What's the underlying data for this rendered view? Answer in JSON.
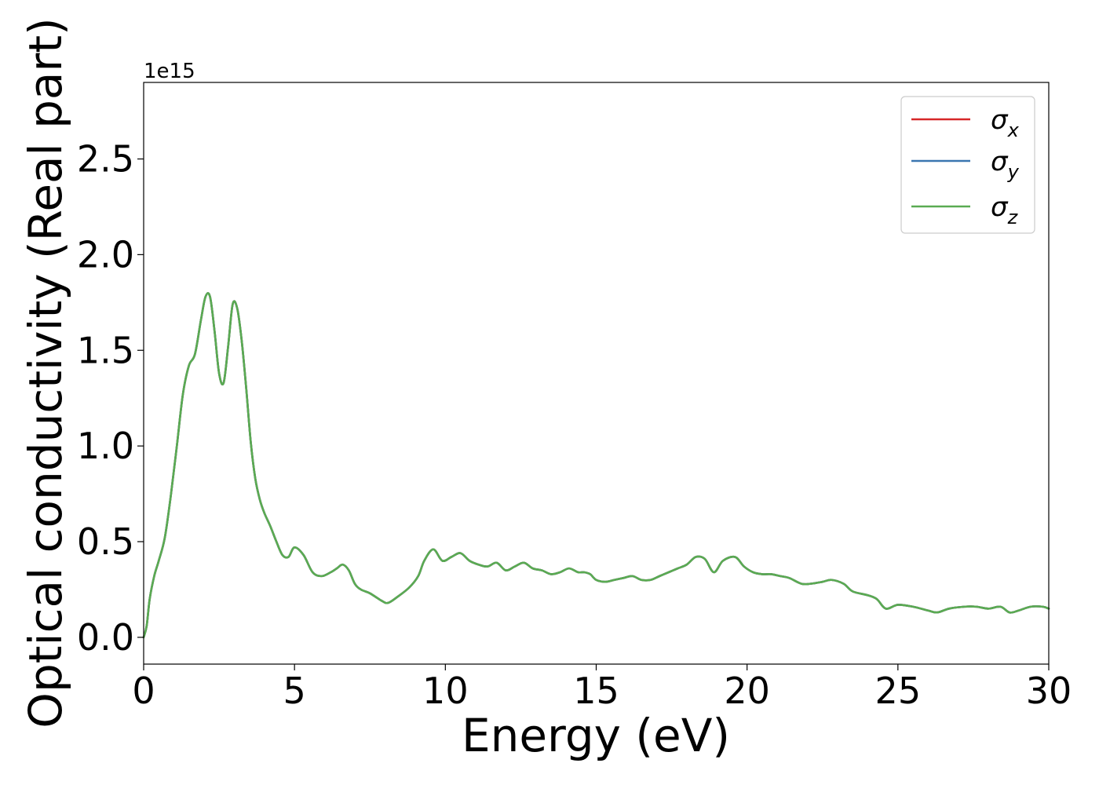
{
  "chart_data": {
    "type": "line",
    "xlabel": "Energy (eV)",
    "ylabel": "Optical conductivity (Real part)",
    "y_offset_label": "1e15",
    "xlim": [
      0,
      30
    ],
    "ylim": [
      -0.14,
      2.9
    ],
    "y_scale_factor": 1000000000000000.0,
    "x_ticks": [
      0,
      5,
      10,
      15,
      20,
      25,
      30
    ],
    "x_tick_labels": [
      "0",
      "5",
      "10",
      "15",
      "20",
      "25",
      "30"
    ],
    "y_ticks": [
      0.0,
      0.5,
      1.0,
      1.5,
      2.0,
      2.5
    ],
    "y_tick_labels": [
      "0.0",
      "0.5",
      "1.0",
      "1.5",
      "2.0",
      "2.5"
    ],
    "grid": false,
    "legend_position": "top-right",
    "colors": {
      "sigma_x": "#d62728",
      "sigma_y": "#3a76b0",
      "sigma_z": "#5aab52"
    },
    "series": [
      {
        "name": "σx",
        "legend_base": "σ",
        "legend_sub": "x",
        "color": "#d62728",
        "ref": "main"
      },
      {
        "name": "σy",
        "legend_base": "σ",
        "legend_sub": "y",
        "color": "#3a76b0",
        "ref": "main"
      },
      {
        "name": "σz",
        "legend_base": "σ",
        "legend_sub": "z",
        "color": "#5aab52",
        "ref": "main"
      }
    ],
    "x": [
      0,
      0.1,
      0.2,
      0.35,
      0.5,
      0.7,
      0.9,
      1.1,
      1.3,
      1.5,
      1.7,
      1.9,
      2.05,
      2.2,
      2.35,
      2.5,
      2.65,
      2.8,
      2.95,
      3.1,
      3.25,
      3.4,
      3.55,
      3.7,
      3.85,
      4.0,
      4.2,
      4.4,
      4.6,
      4.8,
      5.0,
      5.3,
      5.6,
      5.9,
      6.2,
      6.4,
      6.6,
      6.8,
      7.0,
      7.2,
      7.5,
      7.9,
      8.1,
      8.4,
      8.8,
      9.1,
      9.3,
      9.6,
      9.9,
      10.2,
      10.5,
      10.8,
      11.1,
      11.4,
      11.7,
      12.0,
      12.3,
      12.6,
      12.9,
      13.2,
      13.5,
      13.8,
      14.1,
      14.4,
      14.6,
      14.8,
      15.0,
      15.3,
      15.6,
      15.9,
      16.2,
      16.5,
      16.8,
      17.1,
      17.4,
      17.7,
      18.0,
      18.3,
      18.6,
      18.9,
      19.2,
      19.6,
      19.9,
      20.2,
      20.5,
      20.8,
      21.1,
      21.4,
      21.8,
      22.1,
      22.5,
      22.8,
      23.2,
      23.5,
      24.0,
      24.3,
      24.6,
      25.0,
      25.5,
      26.0,
      26.3,
      26.7,
      27.2,
      27.6,
      28.0,
      28.4,
      28.7,
      29.0,
      29.4,
      29.8,
      30.0
    ],
    "y": [
      0.0,
      0.06,
      0.2,
      0.32,
      0.4,
      0.52,
      0.74,
      1.0,
      1.27,
      1.42,
      1.48,
      1.66,
      1.78,
      1.78,
      1.6,
      1.38,
      1.33,
      1.52,
      1.74,
      1.72,
      1.55,
      1.3,
      1.02,
      0.83,
      0.72,
      0.65,
      0.58,
      0.5,
      0.43,
      0.42,
      0.47,
      0.43,
      0.34,
      0.32,
      0.34,
      0.36,
      0.38,
      0.35,
      0.28,
      0.25,
      0.23,
      0.19,
      0.18,
      0.21,
      0.26,
      0.32,
      0.4,
      0.46,
      0.4,
      0.42,
      0.44,
      0.4,
      0.38,
      0.37,
      0.39,
      0.35,
      0.37,
      0.39,
      0.36,
      0.35,
      0.33,
      0.34,
      0.36,
      0.34,
      0.34,
      0.33,
      0.3,
      0.29,
      0.3,
      0.31,
      0.32,
      0.3,
      0.3,
      0.32,
      0.34,
      0.36,
      0.38,
      0.42,
      0.41,
      0.34,
      0.4,
      0.42,
      0.37,
      0.34,
      0.33,
      0.33,
      0.32,
      0.31,
      0.28,
      0.28,
      0.29,
      0.3,
      0.28,
      0.24,
      0.22,
      0.2,
      0.15,
      0.17,
      0.16,
      0.14,
      0.13,
      0.15,
      0.16,
      0.16,
      0.15,
      0.16,
      0.13,
      0.14,
      0.16,
      0.16,
      0.15
    ]
  }
}
